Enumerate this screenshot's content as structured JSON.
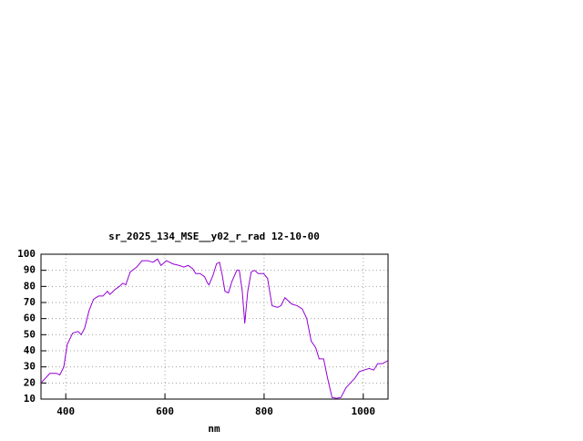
{
  "chart_data": {
    "type": "line",
    "title": "sr_2025_134_MSE__y02_r_rad 12-10-00",
    "x_label": "nm",
    "xlim": [
      350,
      1050
    ],
    "xticks": [
      400,
      600,
      800,
      1000
    ],
    "ylim": [
      10,
      100
    ],
    "yticks": [
      10,
      20,
      30,
      40,
      50,
      60,
      70,
      80,
      90,
      100
    ],
    "grid": true,
    "series": [
      {
        "color": "#9400d3",
        "x": [
          350,
          368,
          381,
          388,
          396,
          403,
          414,
          425,
          431,
          438,
          447,
          456,
          466,
          475,
          484,
          489,
          499,
          508,
          515,
          521,
          530,
          543,
          554,
          565,
          576,
          585,
          592,
          603,
          616,
          629,
          638,
          647,
          656,
          662,
          671,
          680,
          686,
          689,
          697,
          704,
          710,
          715,
          721,
          728,
          735,
          745,
          750,
          756,
          761,
          767,
          774,
          781,
          788,
          799,
          807,
          816,
          827,
          834,
          842,
          849,
          856,
          867,
          877,
          886,
          895,
          904,
          911,
          920,
          928,
          937,
          946,
          955,
          965,
          974,
          983,
          992,
          1001,
          1012,
          1021,
          1029,
          1038,
          1045,
          1050
        ],
        "values": [
          20,
          26,
          26,
          25,
          30,
          44,
          51,
          52,
          50,
          54,
          65,
          72,
          74,
          74,
          77,
          75,
          78,
          80,
          82,
          81,
          89,
          92,
          96,
          96,
          95,
          97,
          93,
          96,
          94,
          93,
          92,
          93,
          91,
          88,
          88,
          86,
          82,
          81,
          87,
          94,
          95,
          88,
          77,
          76,
          83,
          90,
          90,
          77,
          57,
          77,
          89,
          90,
          88,
          88,
          85,
          68,
          67,
          68,
          73,
          71,
          69,
          68,
          66,
          60,
          46,
          42,
          35,
          35,
          23,
          11,
          10.5,
          11,
          17,
          20,
          23,
          27,
          28,
          29,
          28,
          32,
          32,
          33,
          34
        ]
      }
    ]
  }
}
